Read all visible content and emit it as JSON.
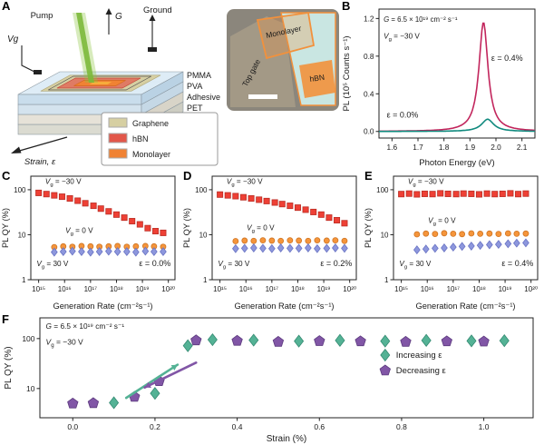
{
  "figure": {
    "panel_labels": {
      "A": "A",
      "B": "B",
      "C": "C",
      "D": "D",
      "E": "E",
      "F": "F"
    }
  },
  "panel_a": {
    "schematic": {
      "pump_label": "Pump",
      "g_label": "G",
      "ground_label": "Ground",
      "vg_label": "Vg",
      "layer_labels": [
        "PMMA",
        "PVA",
        "Adhesive",
        "PET"
      ],
      "strain_label": "Strain, ε",
      "legend": [
        {
          "label": "Graphene",
          "color": "#d6cfa2"
        },
        {
          "label": "hBN",
          "color": "#e2574a"
        },
        {
          "label": "Monolayer",
          "color": "#f08233"
        }
      ]
    },
    "micrograph": {
      "labels": {
        "top_gate": "Top gate",
        "monolayer": "Monolayer",
        "hbn": "hBN"
      }
    }
  },
  "chart_data": [
    {
      "id": "B",
      "type": "line",
      "xlabel": "Photon Energy (eV)",
      "ylabel": "PL (10⁵ Counts s⁻¹)",
      "xscale": "linear",
      "yscale": "linear",
      "xlim": [
        1.55,
        2.15
      ],
      "ylim": [
        -0.07,
        1.3
      ],
      "xticks": [
        {
          "v": 1.6,
          "label": "1.6"
        },
        {
          "v": 1.7,
          "label": "1.7"
        },
        {
          "v": 1.8,
          "label": "1.8"
        },
        {
          "v": 1.9,
          "label": "1.9"
        },
        {
          "v": 2.0,
          "label": "2.0"
        },
        {
          "v": 2.1,
          "label": "2.1"
        }
      ],
      "yticks": [
        {
          "v": 0.0,
          "label": "0.0"
        },
        {
          "v": 0.4,
          "label": "0.4"
        },
        {
          "v": 0.8,
          "label": "0.8"
        },
        {
          "v": 1.2,
          "label": "1.2"
        }
      ],
      "annotations": [
        {
          "t": "G = 6.5 × 10¹⁹ cm⁻² s⁻¹",
          "fx": 0.03,
          "fy": 0.1,
          "size": 7.8,
          "color": "#1a1a1a"
        },
        {
          "t": "Vg = −30 V",
          "fx": 0.03,
          "fy": 0.23,
          "size": 8.2,
          "color": "#1a1a1a"
        },
        {
          "t": "ε = 0.4%",
          "fx": 0.72,
          "fy": 0.4,
          "size": 9,
          "color": "#c2255c"
        },
        {
          "t": "ε = 0.0%",
          "fx": 0.05,
          "fy": 0.84,
          "size": 9,
          "color": "#118a7e"
        }
      ],
      "series": [
        {
          "name": "ε = 0.4%",
          "color": "#c2255c",
          "peak": {
            "center": 1.952,
            "amplitude": 1.16,
            "gamma": 0.021
          }
        },
        {
          "name": "ε = 0.0%",
          "color": "#118a7e",
          "peak": {
            "center": 1.968,
            "amplitude": 0.13,
            "gamma": 0.028
          }
        }
      ]
    },
    {
      "id": "C",
      "type": "scatter",
      "xlabel": "Generation Rate (cm⁻²s⁻¹)",
      "ylabel": "PL QY (%)",
      "xscale": "log",
      "yscale": "log",
      "xlim": [
        500000000000000.0,
        1.8e+20
      ],
      "ylim": [
        1,
        200
      ],
      "xticks": [
        {
          "v": 1000000000000000.0,
          "label": "10¹⁵"
        },
        {
          "v": 1e+16,
          "label": "10¹⁶"
        },
        {
          "v": 1e+17,
          "label": "10¹⁷"
        },
        {
          "v": 1e+18,
          "label": "10¹⁸"
        },
        {
          "v": 1e+19,
          "label": "10¹⁹"
        },
        {
          "v": 1e+20,
          "label": "10²⁰"
        }
      ],
      "yticks": [
        {
          "v": 1,
          "label": "1"
        },
        {
          "v": 10,
          "label": "10"
        },
        {
          "v": 100,
          "label": "100"
        }
      ],
      "annotations": [
        {
          "t": "Vg = −30 V",
          "fx": 0.1,
          "fy": 0.075,
          "size": 8.2,
          "color": "#e03a34"
        },
        {
          "t": "Vg = 0 V",
          "fx": 0.24,
          "fy": 0.55,
          "size": 8.2,
          "color": "#e8831f"
        },
        {
          "t": "Vg = 30 V",
          "fx": 0.04,
          "fy": 0.87,
          "size": 8.2,
          "color": "#6a74c4"
        },
        {
          "t": "ε = 0.0%",
          "fx": 0.97,
          "fy": 0.87,
          "size": 9,
          "color": "#1a1a1a",
          "anchor": "end"
        }
      ],
      "series": [
        {
          "name": "Vg = −30 V",
          "marker": "square",
          "color": "#ee4035",
          "edge": "#bb2d24",
          "size": 3.1,
          "x": [
            1000000000000000.0,
            2000000000000000.0,
            4000000000000000.0,
            8000000000000000.0,
            1.6e+16,
            3.2e+16,
            6.3e+16,
            1.3e+17,
            2.5e+17,
            5e+17,
            1e+18,
            2e+18,
            4e+18,
            8e+18,
            1.6e+19,
            3.2e+19,
            6.3e+19
          ],
          "y": [
            85,
            80,
            75,
            70,
            64,
            57,
            50,
            44,
            38,
            33,
            28,
            24,
            20,
            17,
            14,
            12,
            11
          ]
        },
        {
          "name": "Vg = 0 V",
          "marker": "circle",
          "color": "#f5953b",
          "edge": "#cf7422",
          "size": 3.0,
          "x": [
            4000000000000000.0,
            8900000000000000.0,
            2e+16,
            4.5e+16,
            1e+17,
            2.2e+17,
            5e+17,
            1.1e+18,
            2.5e+18,
            5.6e+18,
            1.3e+19,
            2.8e+19,
            6.3e+19
          ],
          "y": [
            5.3,
            5.5,
            5.4,
            5.6,
            5.5,
            5.4,
            5.5,
            5.6,
            5.4,
            5.5,
            5.6,
            5.5,
            5.4
          ]
        },
        {
          "name": "Vg = 30 V",
          "marker": "diamond",
          "color": "#8d97dd",
          "edge": "#6a74c4",
          "size": 3.2,
          "x": [
            4000000000000000.0,
            8900000000000000.0,
            2e+16,
            4.5e+16,
            1e+17,
            2.2e+17,
            5e+17,
            1.1e+18,
            2.5e+18,
            5.6e+18,
            1.3e+19,
            2.8e+19,
            6.3e+19
          ],
          "y": [
            4.1,
            4.2,
            4.3,
            4.2,
            4.1,
            4.2,
            4.3,
            4.2,
            4.2,
            4.1,
            4.3,
            4.2,
            4.2
          ]
        }
      ]
    },
    {
      "id": "D",
      "type": "scatter",
      "xlabel": "Generation Rate (cm⁻²s⁻¹)",
      "ylabel": "PL QY (%)",
      "xscale": "log",
      "yscale": "log",
      "xlim": [
        500000000000000.0,
        1.8e+20
      ],
      "ylim": [
        1,
        200
      ],
      "xticks": [
        {
          "v": 1000000000000000.0,
          "label": "10¹⁵"
        },
        {
          "v": 1e+16,
          "label": "10¹⁶"
        },
        {
          "v": 1e+17,
          "label": "10¹⁷"
        },
        {
          "v": 1e+18,
          "label": "10¹⁸"
        },
        {
          "v": 1e+19,
          "label": "10¹⁹"
        },
        {
          "v": 1e+20,
          "label": "10²⁰"
        }
      ],
      "yticks": [
        {
          "v": 1,
          "label": "1"
        },
        {
          "v": 10,
          "label": "10"
        },
        {
          "v": 100,
          "label": "100"
        }
      ],
      "annotations": [
        {
          "t": "Vg = −30 V",
          "fx": 0.1,
          "fy": 0.075,
          "size": 8.2,
          "color": "#e03a34"
        },
        {
          "t": "Vg = 0 V",
          "fx": 0.24,
          "fy": 0.52,
          "size": 8.2,
          "color": "#e8831f"
        },
        {
          "t": "Vg = 30 V",
          "fx": 0.04,
          "fy": 0.87,
          "size": 8.2,
          "color": "#6a74c4"
        },
        {
          "t": "ε = 0.2%",
          "fx": 0.97,
          "fy": 0.87,
          "size": 9,
          "color": "#1a1a1a",
          "anchor": "end"
        }
      ],
      "series": [
        {
          "name": "Vg = −30 V",
          "marker": "square",
          "color": "#ee4035",
          "edge": "#bb2d24",
          "size": 3.1,
          "x": [
            1000000000000000.0,
            2000000000000000.0,
            4000000000000000.0,
            8000000000000000.0,
            1.6e+16,
            3.2e+16,
            6.3e+16,
            1.3e+17,
            2.5e+17,
            5e+17,
            1e+18,
            2e+18,
            4e+18,
            8e+18,
            1.6e+19,
            3.2e+19,
            6.3e+19
          ],
          "y": [
            78,
            75,
            72,
            68,
            64,
            60,
            56,
            52,
            48,
            44,
            40,
            36,
            32,
            28,
            24,
            21,
            18
          ]
        },
        {
          "name": "Vg = 0 V",
          "marker": "circle",
          "color": "#f5953b",
          "edge": "#cf7422",
          "size": 3.0,
          "x": [
            4000000000000000.0,
            8900000000000000.0,
            2e+16,
            4.5e+16,
            1e+17,
            2.2e+17,
            5e+17,
            1.1e+18,
            2.5e+18,
            5.6e+18,
            1.3e+19,
            2.8e+19,
            6.3e+19
          ],
          "y": [
            7.2,
            7.4,
            7.3,
            7.5,
            7.4,
            7.3,
            7.5,
            7.4,
            7.3,
            7.5,
            7.4,
            7.5,
            7.3
          ]
        },
        {
          "name": "Vg = 30 V",
          "marker": "diamond",
          "color": "#8d97dd",
          "edge": "#6a74c4",
          "size": 3.2,
          "x": [
            4000000000000000.0,
            8900000000000000.0,
            2e+16,
            4.5e+16,
            1e+17,
            2.2e+17,
            5e+17,
            1.1e+18,
            2.5e+18,
            5.6e+18,
            1.3e+19,
            2.8e+19,
            6.3e+19
          ],
          "y": [
            4.9,
            5.0,
            5.1,
            5.0,
            4.9,
            5.1,
            5.0,
            5.0,
            5.1,
            4.9,
            5.0,
            5.1,
            5.0
          ]
        }
      ]
    },
    {
      "id": "E",
      "type": "scatter",
      "xlabel": "Generation Rate (cm⁻²s⁻¹)",
      "ylabel": "PL QY (%)",
      "xscale": "log",
      "yscale": "log",
      "xlim": [
        500000000000000.0,
        1.8e+20
      ],
      "ylim": [
        1,
        200
      ],
      "xticks": [
        {
          "v": 1000000000000000.0,
          "label": "10¹⁵"
        },
        {
          "v": 1e+16,
          "label": "10¹⁶"
        },
        {
          "v": 1e+17,
          "label": "10¹⁷"
        },
        {
          "v": 1e+18,
          "label": "10¹⁸"
        },
        {
          "v": 1e+19,
          "label": "10¹⁹"
        },
        {
          "v": 1e+20,
          "label": "10²⁰"
        }
      ],
      "yticks": [
        {
          "v": 1,
          "label": "1"
        },
        {
          "v": 10,
          "label": "10"
        },
        {
          "v": 100,
          "label": "100"
        }
      ],
      "annotations": [
        {
          "t": "Vg = −30 V",
          "fx": 0.1,
          "fy": 0.075,
          "size": 8.2,
          "color": "#e03a34"
        },
        {
          "t": "Vg = 0 V",
          "fx": 0.24,
          "fy": 0.45,
          "size": 8.2,
          "color": "#e8831f"
        },
        {
          "t": "Vg = 30 V",
          "fx": 0.04,
          "fy": 0.87,
          "size": 8.2,
          "color": "#6a74c4"
        },
        {
          "t": "ε = 0.4%",
          "fx": 0.97,
          "fy": 0.87,
          "size": 9,
          "color": "#1a1a1a",
          "anchor": "end"
        }
      ],
      "series": [
        {
          "name": "Vg = −30 V",
          "marker": "square",
          "color": "#ee4035",
          "edge": "#bb2d24",
          "size": 3.1,
          "x": [
            1000000000000000.0,
            2000000000000000.0,
            4000000000000000.0,
            8000000000000000.0,
            1.6e+16,
            3.2e+16,
            6.3e+16,
            1.3e+17,
            2.5e+17,
            5e+17,
            1e+18,
            2e+18,
            4e+18,
            8e+18,
            1.6e+19,
            3.2e+19,
            6.3e+19
          ],
          "y": [
            80,
            82,
            79,
            81,
            80,
            83,
            81,
            80,
            82,
            81,
            79,
            82,
            80,
            81,
            83,
            80,
            82
          ]
        },
        {
          "name": "Vg = 0 V",
          "marker": "circle",
          "color": "#f5953b",
          "edge": "#cf7422",
          "size": 3.0,
          "x": [
            4000000000000000.0,
            8900000000000000.0,
            2e+16,
            4.5e+16,
            1e+17,
            2.2e+17,
            5e+17,
            1.1e+18,
            2.5e+18,
            5.6e+18,
            1.3e+19,
            2.8e+19,
            6.3e+19
          ],
          "y": [
            10.2,
            10.6,
            10.4,
            10.8,
            10.5,
            10.3,
            10.7,
            10.5,
            10.6,
            10.4,
            10.7,
            10.5,
            10.6
          ]
        },
        {
          "name": "Vg = 30 V",
          "marker": "diamond",
          "color": "#8d97dd",
          "edge": "#6a74c4",
          "size": 3.2,
          "x": [
            4000000000000000.0,
            8900000000000000.0,
            2e+16,
            4.5e+16,
            1e+17,
            2.2e+17,
            5e+17,
            1.1e+18,
            2.5e+18,
            5.6e+18,
            1.3e+19,
            2.8e+19,
            6.3e+19
          ],
          "y": [
            4.6,
            4.8,
            5.0,
            5.1,
            5.3,
            5.5,
            5.6,
            5.8,
            6.0,
            6.1,
            6.3,
            6.5,
            6.6
          ]
        }
      ]
    },
    {
      "id": "F",
      "type": "scatter",
      "xlabel": "Strain (%)",
      "ylabel": "PL QY (%)",
      "xscale": "linear",
      "yscale": "log",
      "xlim": [
        -0.08,
        1.12
      ],
      "ylim": [
        2.6,
        260
      ],
      "xticks": [
        {
          "v": 0.0,
          "label": "0.0"
        },
        {
          "v": 0.2,
          "label": "0.2"
        },
        {
          "v": 0.4,
          "label": "0.4"
        },
        {
          "v": 0.6,
          "label": "0.6"
        },
        {
          "v": 0.8,
          "label": "0.8"
        },
        {
          "v": 1.0,
          "label": "1.0"
        }
      ],
      "yticks": [
        {
          "v": 10,
          "label": "10"
        },
        {
          "v": 100,
          "label": "100"
        }
      ],
      "annotations": [
        {
          "t": "G = 6.5 × 10¹⁹ cm⁻² s⁻¹",
          "fx": 0.012,
          "fy": 0.11,
          "size": 8.3,
          "color": "#1a1a1a"
        },
        {
          "t": "Vg = −30 V",
          "fx": 0.012,
          "fy": 0.27,
          "size": 8.5,
          "color": "#1a1a1a"
        }
      ],
      "legend": {
        "fx": 0.7,
        "fy": 0.4,
        "row": 17,
        "size": 9.5,
        "items": [
          {
            "label": "Increasing ε",
            "marker": "diamond",
            "color": "#54b295",
            "edge": "#348a72"
          },
          {
            "label": "Decreasing ε",
            "marker": "pentagon",
            "color": "#8156a6",
            "edge": "#5c3a7e"
          }
        ]
      },
      "arrows": [
        {
          "x1": 0.13,
          "y1": 6.5,
          "x2": 0.255,
          "y2": 30,
          "color": "#54b295",
          "w": 2.6
        },
        {
          "x1": 0.3,
          "y1": 33,
          "x2": 0.175,
          "y2": 10.5,
          "color": "#8156a6",
          "w": 2.6
        }
      ],
      "series": [
        {
          "name": "Increasing ε",
          "marker": "diamond",
          "color": "#54b295",
          "edge": "#348a72",
          "size": 4.8,
          "x": [
            0.1,
            0.2,
            0.28,
            0.34,
            0.44,
            0.55,
            0.65,
            0.76,
            0.86,
            0.97,
            1.05
          ],
          "y": [
            5.2,
            8.0,
            72,
            95,
            93,
            89,
            92,
            89,
            92,
            90,
            91
          ]
        },
        {
          "name": "Decreasing ε",
          "marker": "pentagon",
          "color": "#8156a6",
          "edge": "#5c3a7e",
          "size": 4.8,
          "x": [
            0.0,
            0.05,
            0.15,
            0.21,
            0.3,
            0.4,
            0.5,
            0.6,
            0.7,
            0.81,
            0.91,
            1.0
          ],
          "y": [
            5.0,
            5.1,
            6.8,
            14,
            92,
            90,
            86,
            89,
            88,
            86,
            88,
            87
          ]
        }
      ]
    }
  ]
}
